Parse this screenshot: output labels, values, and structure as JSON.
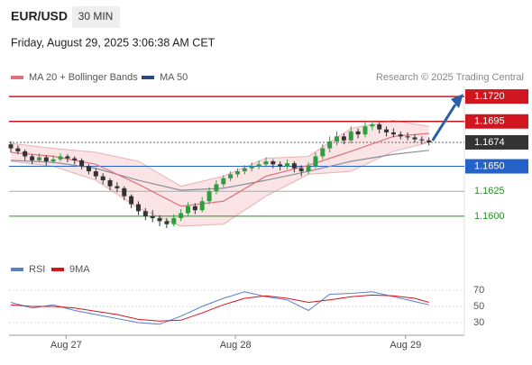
{
  "header": {
    "symbol": "EUR/USD",
    "interval": "30 MIN",
    "datetime": "Friday, August 29, 2025 3:06:38 AM CET"
  },
  "chart_data": {
    "type": "candlestick",
    "legend": [
      "MA 20 + Bollinger Bands",
      "MA 50"
    ],
    "credit": "Research © 2025 Trading Central",
    "xlim": [
      0,
      64
    ],
    "xticks": [
      {
        "value": 7.8,
        "label": "Aug 27"
      },
      {
        "value": 31.7,
        "label": "Aug 28"
      },
      {
        "value": 55.7,
        "label": "Aug 29"
      }
    ],
    "ylim": [
      1.158,
      1.173
    ],
    "up_color": "#2e9e3e",
    "down_color": "#333333",
    "candles": [
      [
        1.1672,
        1.1675,
        1.1664,
        1.1668
      ],
      [
        1.1668,
        1.1671,
        1.1662,
        1.1665
      ],
      [
        1.1665,
        1.1667,
        1.1656,
        1.166
      ],
      [
        1.166,
        1.1662,
        1.1652,
        1.1656
      ],
      [
        1.1656,
        1.1663,
        1.1654,
        1.1659
      ],
      [
        1.1659,
        1.1661,
        1.1651,
        1.1655
      ],
      [
        1.1655,
        1.1661,
        1.1653,
        1.1657
      ],
      [
        1.1657,
        1.1663,
        1.1655,
        1.166
      ],
      [
        1.166,
        1.1662,
        1.1654,
        1.1658
      ],
      [
        1.1658,
        1.166,
        1.1652,
        1.1656
      ],
      [
        1.1656,
        1.1658,
        1.1647,
        1.165
      ],
      [
        1.165,
        1.1652,
        1.1642,
        1.1645
      ],
      [
        1.1645,
        1.1648,
        1.1637,
        1.164
      ],
      [
        1.164,
        1.1643,
        1.1632,
        1.1636
      ],
      [
        1.1636,
        1.1638,
        1.1626,
        1.163
      ],
      [
        1.163,
        1.1634,
        1.1624,
        1.1628
      ],
      [
        1.1628,
        1.163,
        1.1616,
        1.162
      ],
      [
        1.162,
        1.1622,
        1.1608,
        1.1612
      ],
      [
        1.1612,
        1.1615,
        1.1601,
        1.1605
      ],
      [
        1.1605,
        1.1608,
        1.1596,
        1.16
      ],
      [
        1.16,
        1.1606,
        1.1594,
        1.1598
      ],
      [
        1.1598,
        1.1601,
        1.159,
        1.1595
      ],
      [
        1.1595,
        1.1598,
        1.1588,
        1.1592
      ],
      [
        1.1592,
        1.1602,
        1.159,
        1.1598
      ],
      [
        1.1598,
        1.1607,
        1.1595,
        1.1603
      ],
      [
        1.1603,
        1.1614,
        1.16,
        1.161
      ],
      [
        1.161,
        1.1613,
        1.1602,
        1.1606
      ],
      [
        1.1606,
        1.1619,
        1.1604,
        1.1615
      ],
      [
        1.1615,
        1.1629,
        1.1612,
        1.1625
      ],
      [
        1.1625,
        1.1636,
        1.1622,
        1.1632
      ],
      [
        1.1632,
        1.1641,
        1.1629,
        1.1638
      ],
      [
        1.1638,
        1.1645,
        1.1635,
        1.1642
      ],
      [
        1.1642,
        1.1648,
        1.1639,
        1.1645
      ],
      [
        1.1645,
        1.1651,
        1.1642,
        1.1648
      ],
      [
        1.1648,
        1.1654,
        1.1645,
        1.165
      ],
      [
        1.165,
        1.1656,
        1.1647,
        1.1652
      ],
      [
        1.1652,
        1.1659,
        1.1649,
        1.1655
      ],
      [
        1.1655,
        1.1657,
        1.1648,
        1.1652
      ],
      [
        1.1652,
        1.1655,
        1.1646,
        1.165
      ],
      [
        1.165,
        1.1657,
        1.1647,
        1.1653
      ],
      [
        1.1653,
        1.1655,
        1.1644,
        1.1648
      ],
      [
        1.1648,
        1.1651,
        1.164,
        1.1645
      ],
      [
        1.1645,
        1.1654,
        1.1642,
        1.165
      ],
      [
        1.165,
        1.1664,
        1.1648,
        1.166
      ],
      [
        1.166,
        1.1672,
        1.1657,
        1.1668
      ],
      [
        1.1668,
        1.168,
        1.1664,
        1.1675
      ],
      [
        1.1675,
        1.1685,
        1.1671,
        1.168
      ],
      [
        1.168,
        1.1683,
        1.1672,
        1.1676
      ],
      [
        1.1676,
        1.169,
        1.1673,
        1.1685
      ],
      [
        1.1685,
        1.1688,
        1.1678,
        1.1682
      ],
      [
        1.1682,
        1.1695,
        1.1679,
        1.169
      ],
      [
        1.169,
        1.1696,
        1.1686,
        1.1692
      ],
      [
        1.1692,
        1.1694,
        1.1683,
        1.1687
      ],
      [
        1.1687,
        1.169,
        1.168,
        1.1684
      ],
      [
        1.1684,
        1.1688,
        1.1679,
        1.1682
      ],
      [
        1.1682,
        1.1685,
        1.1677,
        1.168
      ],
      [
        1.168,
        1.1684,
        1.1676,
        1.1679
      ],
      [
        1.1679,
        1.1682,
        1.1674,
        1.1677
      ],
      [
        1.1677,
        1.168,
        1.1672,
        1.1676
      ],
      [
        1.1676,
        1.1679,
        1.1671,
        1.1674
      ]
    ],
    "ma_x": [
      0,
      6,
      12,
      18,
      24,
      30,
      36,
      42,
      48,
      54,
      59
    ],
    "ma20": [
      1.1664,
      1.166,
      1.1652,
      1.1632,
      1.161,
      1.1615,
      1.164,
      1.1651,
      1.1665,
      1.168,
      1.1683
    ],
    "bb_upper": [
      1.1673,
      1.1668,
      1.1664,
      1.1655,
      1.163,
      1.164,
      1.1658,
      1.166,
      1.1688,
      1.1696,
      1.169
    ],
    "bb_lower": [
      1.1655,
      1.165,
      1.1636,
      1.1608,
      1.159,
      1.1592,
      1.162,
      1.1642,
      1.1645,
      1.1665,
      1.1674
    ],
    "ma50": [
      1.1656,
      1.1654,
      1.1648,
      1.1636,
      1.1626,
      1.1628,
      1.1636,
      1.1645,
      1.1655,
      1.1662,
      1.1666
    ],
    "ma20_color": "#e0707a",
    "ma50_color": "#8a8f99",
    "levels": [
      {
        "value": 1.172,
        "label": "1.1720",
        "color": "#d0161e",
        "boxed": true
      },
      {
        "value": 1.1695,
        "label": "1.1695",
        "color": "#d0161e",
        "boxed": true
      },
      {
        "value": 1.1674,
        "label": "1.1674",
        "color": "#333333",
        "boxed": true
      },
      {
        "value": 1.165,
        "label": "1.1650",
        "color": "#2563c9",
        "boxed": true
      },
      {
        "value": 1.1625,
        "label": "1.1625",
        "color": "#2e8b2e",
        "boxed": false
      },
      {
        "value": 1.16,
        "label": "1.1600",
        "color": "#2e8b2e",
        "boxed": false
      }
    ]
  },
  "rsi_data": {
    "type": "line",
    "legend": [
      "RSI",
      "9MA"
    ],
    "ylim": [
      20,
      80
    ],
    "yticks": [
      30,
      50,
      70
    ],
    "x": [
      0,
      3,
      6,
      9,
      12,
      15,
      18,
      21,
      24,
      27,
      30,
      33,
      36,
      39,
      42,
      45,
      48,
      51,
      54,
      57,
      59
    ],
    "series": [
      {
        "name": "RSI",
        "color": "#5b7fc7",
        "values": [
          55,
          48,
          52,
          45,
          40,
          35,
          30,
          28,
          38,
          50,
          60,
          68,
          62,
          58,
          45,
          65,
          66,
          68,
          62,
          56,
          52
        ]
      },
      {
        "name": "9MA",
        "color": "#d0161e",
        "values": [
          52,
          50,
          50,
          48,
          44,
          40,
          34,
          32,
          33,
          42,
          52,
          60,
          63,
          60,
          55,
          58,
          62,
          64,
          63,
          60,
          55
        ]
      }
    ]
  }
}
